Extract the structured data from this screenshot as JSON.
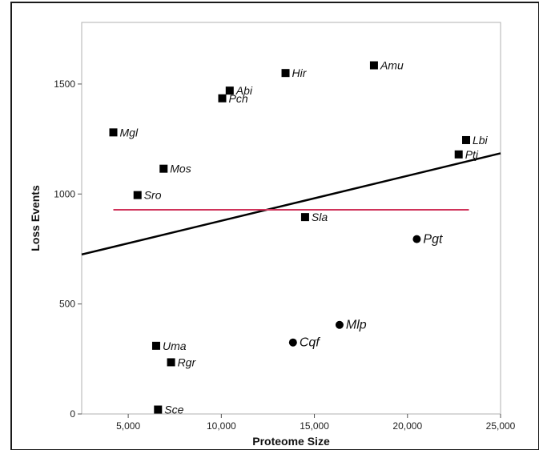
{
  "chart_data": {
    "type": "scatter",
    "title": "",
    "xlabel": "Proteome Size",
    "ylabel": "Loss Events",
    "xlim": [
      2500,
      25000
    ],
    "ylim": [
      0,
      1780
    ],
    "x_ticks": [
      5000,
      10000,
      15000,
      20000,
      25000
    ],
    "x_tick_labels": [
      "5,000",
      "10,000",
      "15,000",
      "20,000",
      "25,000"
    ],
    "y_ticks": [
      0,
      500,
      1000,
      1500
    ],
    "y_tick_labels": [
      "0",
      "500",
      "1000",
      "1500"
    ],
    "grid": false,
    "series": [
      {
        "marker": "square",
        "color": "#000000",
        "points": [
          {
            "label": "Amu",
            "x": 18200,
            "y": 1585
          },
          {
            "label": "Hir",
            "x": 13450,
            "y": 1550
          },
          {
            "label": "Abi",
            "x": 10450,
            "y": 1470
          },
          {
            "label": "Pch",
            "x": 10050,
            "y": 1435
          },
          {
            "label": "Mgl",
            "x": 4200,
            "y": 1280
          },
          {
            "label": "Lbi",
            "x": 23150,
            "y": 1245
          },
          {
            "label": "Ptj",
            "x": 22750,
            "y": 1180
          },
          {
            "label": "Mos",
            "x": 6900,
            "y": 1115
          },
          {
            "label": "Sro",
            "x": 5500,
            "y": 995
          },
          {
            "label": "Sla",
            "x": 14500,
            "y": 895
          },
          {
            "label": "Uma",
            "x": 6500,
            "y": 310
          },
          {
            "label": "Rgr",
            "x": 7300,
            "y": 235
          },
          {
            "label": "Sce",
            "x": 6600,
            "y": 20
          }
        ]
      },
      {
        "marker": "circle",
        "color": "#000000",
        "points": [
          {
            "label": "Pgt",
            "x": 20500,
            "y": 795
          },
          {
            "label": "Mlp",
            "x": 16350,
            "y": 405
          },
          {
            "label": "Cqf",
            "x": 13850,
            "y": 325
          }
        ]
      }
    ],
    "lines": [
      {
        "color": "#000000",
        "x": [
          2500,
          25000
        ],
        "y": [
          725,
          1185
        ]
      },
      {
        "color": "#d0335a",
        "x": [
          4200,
          23300
        ],
        "y": [
          928,
          928
        ]
      }
    ]
  }
}
